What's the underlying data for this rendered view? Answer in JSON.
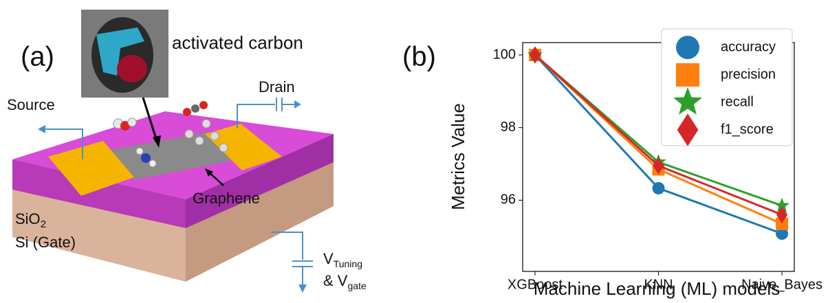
{
  "panel_a": {
    "label": "(a)",
    "activated": "activated carbon",
    "drain": "Drain",
    "source": "Source",
    "graphene": "Graphene",
    "sio2": {
      "base": "SiO",
      "sub": "2"
    },
    "si": "Si (Gate)",
    "v_tuning": {
      "base": "V",
      "sub": "Tuning"
    },
    "v_gate": {
      "base": "& V",
      "sub": "gate"
    }
  },
  "chart_data": {
    "type": "line",
    "label": "(b)",
    "x_label": "Machine Learning (ML) models",
    "y_label": "Metrics Value",
    "categories": [
      "XGBoost",
      "KNN",
      "Naive_Bayes"
    ],
    "series": [
      {
        "name": "accuracy",
        "color": "#1f77b4",
        "marker": "circle",
        "values": [
          100,
          96.33,
          95.08
        ]
      },
      {
        "name": "precision",
        "color": "#ff7f0e",
        "marker": "square",
        "values": [
          100,
          96.85,
          95.35
        ]
      },
      {
        "name": "recall",
        "color": "#2ca02c",
        "marker": "star",
        "values": [
          100,
          97.05,
          95.85
        ]
      },
      {
        "name": "f1_score",
        "color": "#d62728",
        "marker": "diamond",
        "values": [
          100,
          96.95,
          95.6
        ]
      }
    ],
    "ylim": [
      94.04,
      100.34
    ],
    "yticks": [
      96,
      98,
      100
    ],
    "grid": false,
    "legend": "upper right"
  }
}
